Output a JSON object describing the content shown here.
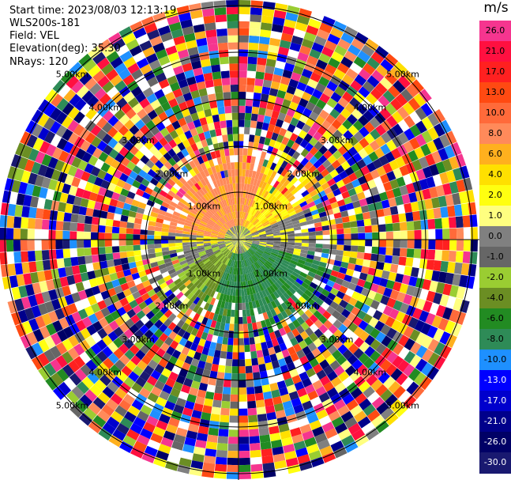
{
  "header": {
    "start_time": "Start time: 2023/08/03 12:13:19",
    "instrument": "WLS200s-181",
    "field": "Field: VEL",
    "elevation": "Elevation(deg): 35.30",
    "nrays": "NRays: 120"
  },
  "colorbar": {
    "unit": "m/s",
    "levels": [
      {
        "label": "26.0",
        "color": "#f5358f"
      },
      {
        "label": "21.0",
        "color": "#ff1040"
      },
      {
        "label": "17.0",
        "color": "#ff2020"
      },
      {
        "label": "13.0",
        "color": "#ff4a12"
      },
      {
        "label": "10.0",
        "color": "#ff6a3a"
      },
      {
        "label": "8.0",
        "color": "#ff8a5a"
      },
      {
        "label": "6.0",
        "color": "#ffb01e"
      },
      {
        "label": "4.0",
        "color": "#ffe000"
      },
      {
        "label": "2.0",
        "color": "#ffff10"
      },
      {
        "label": "1.0",
        "color": "#ffff80"
      },
      {
        "label": "0.0",
        "color": "#808080"
      },
      {
        "label": "-1.0",
        "color": "#666666"
      },
      {
        "label": "-2.0",
        "color": "#9acd32"
      },
      {
        "label": "-4.0",
        "color": "#6b8e23"
      },
      {
        "label": "-6.0",
        "color": "#228b22"
      },
      {
        "label": "-8.0",
        "color": "#2e8b57"
      },
      {
        "label": "-10.0",
        "color": "#1e90ff"
      },
      {
        "label": "-13.0",
        "color": "#0000ff"
      },
      {
        "label": "-17.0",
        "color": "#0000cd"
      },
      {
        "label": "-21.0",
        "color": "#00008b"
      },
      {
        "label": "-26.0",
        "color": "#000066"
      },
      {
        "label": "-30.0",
        "color": "#191970"
      }
    ]
  },
  "range_rings": [
    "1.00km",
    "2.00km",
    "3.00km",
    "4.00km",
    "5.00km"
  ]
}
